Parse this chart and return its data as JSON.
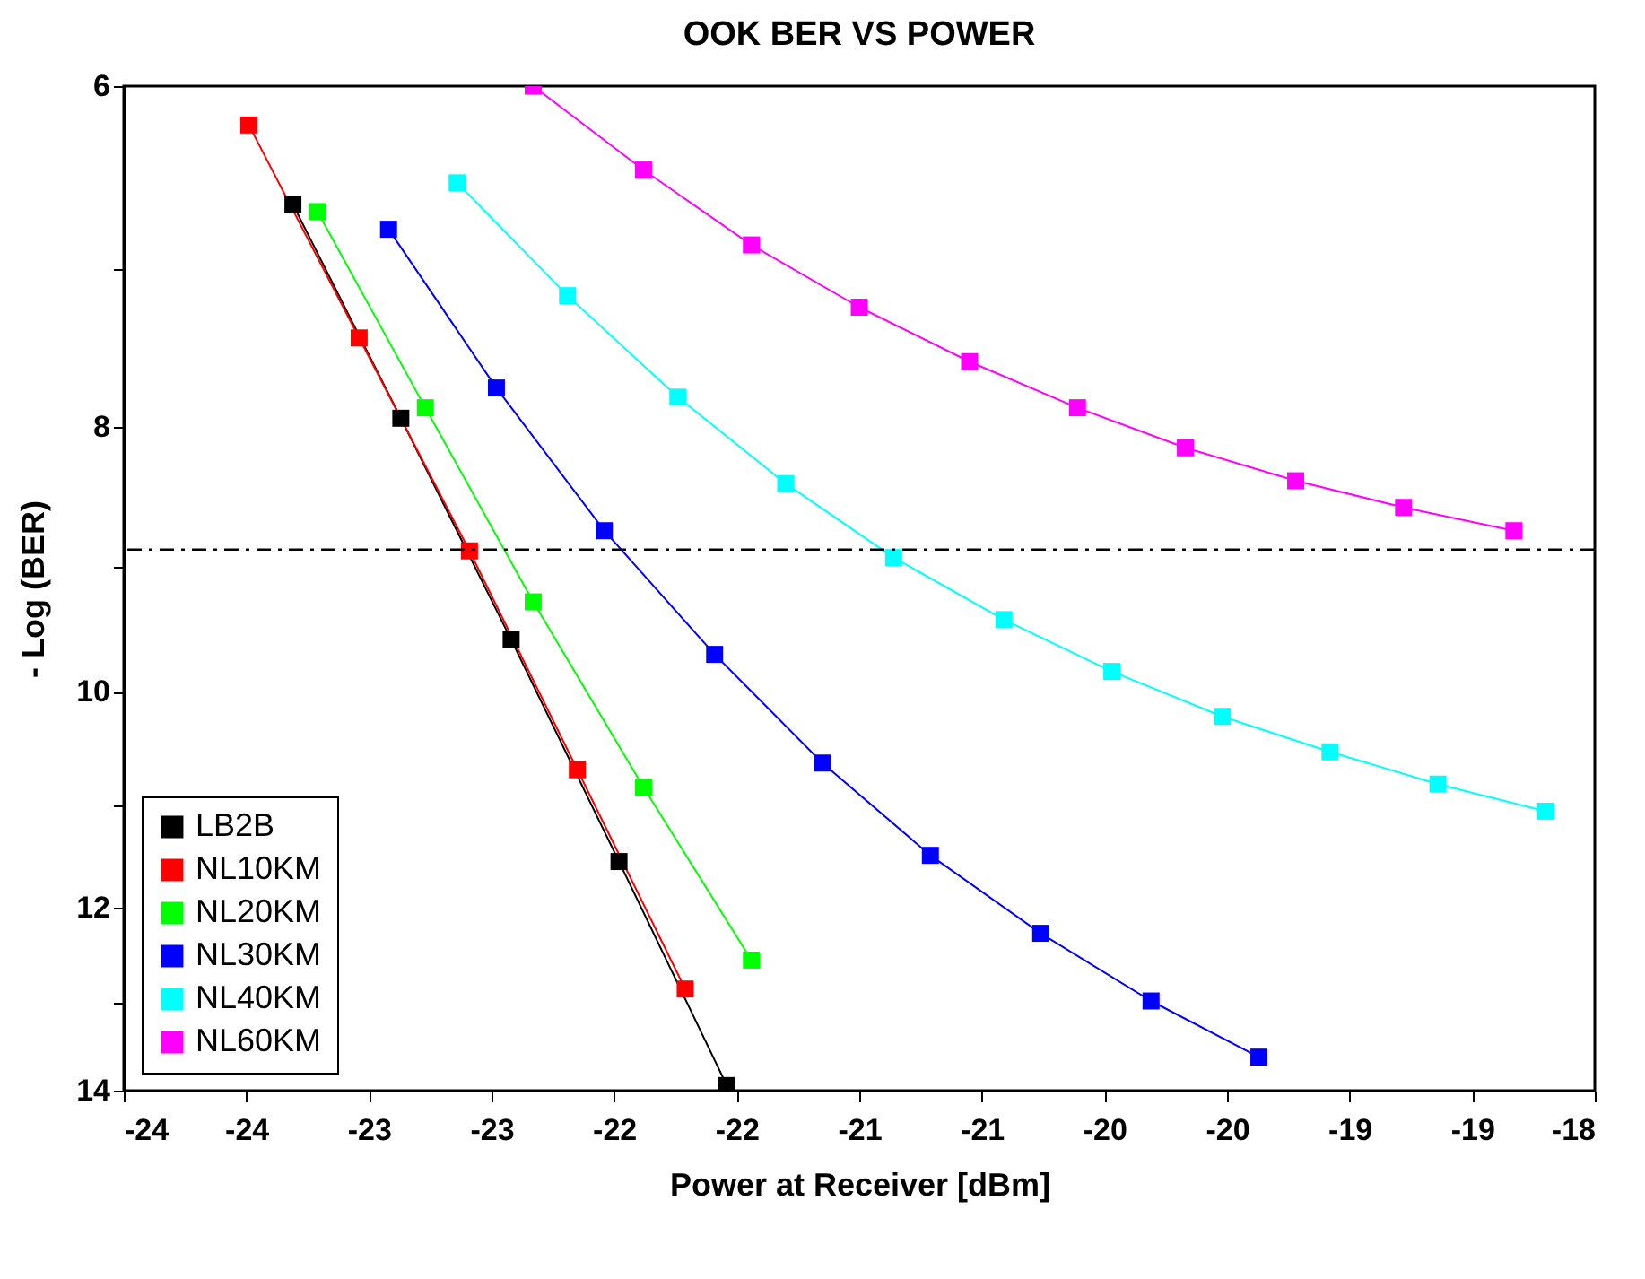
{
  "chart_data": {
    "type": "line",
    "title": "OOK BER VS POWER",
    "xlabel": "Power at Receiver [dBm]",
    "ylabel": "- Log (BER)",
    "xlim": [
      -24,
      -18
    ],
    "xticks": [
      -24,
      {
        "value": -23.5,
        "label": "-24"
      },
      -23,
      {
        "value": -22.5,
        "label": "-23"
      },
      -22,
      {
        "value": -21.5,
        "label": "-22"
      },
      -21,
      {
        "value": -20.5,
        "label": "-21"
      },
      -20,
      {
        "value": -19.5,
        "label": "-20"
      },
      -19,
      {
        "value": -18.5,
        "label": "-19"
      },
      -18
    ],
    "ylim": [
      14,
      6
    ],
    "yticks": [
      6,
      {
        "value": 7,
        "label": null
      },
      8,
      {
        "value": 9,
        "label": null
      },
      10,
      {
        "value": 11,
        "label": null
      },
      12,
      {
        "value": 13,
        "label": null
      },
      14
    ],
    "log": "y",
    "grid": false,
    "legend": "bottom left",
    "marker": "square",
    "line_style": "solid",
    "ref_lines": [
      {
        "axis": "y",
        "value": 8.87,
        "line_style": "dashed",
        "color": "#000000"
      }
    ],
    "series": [
      {
        "name": "LB2B",
        "color": "#000000",
        "x": [
          -23.31,
          -22.87,
          -22.42,
          -21.98,
          -21.54
        ],
        "values": [
          6.63,
          7.94,
          9.57,
          11.54,
          13.94
        ]
      },
      {
        "name": "NL10KM",
        "color": "#ff0000",
        "x": [
          -23.49,
          -23.04,
          -22.59,
          -22.15,
          -21.71
        ],
        "values": [
          6.2,
          7.42,
          8.88,
          10.68,
          12.85
        ]
      },
      {
        "name": "NL20KM",
        "color": "#00ff00",
        "x": [
          -23.21,
          -22.77,
          -22.33,
          -21.88,
          -21.44
        ],
        "values": [
          6.67,
          7.87,
          9.27,
          10.84,
          12.54
        ]
      },
      {
        "name": "NL30KM",
        "color": "#0000ff",
        "x": [
          -22.92,
          -22.48,
          -22.04,
          -21.59,
          -21.15,
          -20.71,
          -20.26,
          -19.81,
          -19.37
        ],
        "values": [
          6.77,
          7.74,
          8.73,
          9.69,
          10.62,
          11.48,
          12.26,
          12.98,
          13.61
        ]
      },
      {
        "name": "NL40KM",
        "color": "#00ffff",
        "x": [
          -22.64,
          -22.19,
          -21.74,
          -21.3,
          -20.86,
          -20.41,
          -19.97,
          -19.52,
          -19.08,
          -18.64,
          -18.2
        ],
        "values": [
          6.51,
          7.16,
          7.8,
          8.39,
          8.93,
          9.41,
          9.83,
          10.21,
          10.52,
          10.81,
          11.06
        ]
      },
      {
        "name": "NL60KM",
        "color": "#ff00ff",
        "x": [
          -22.33,
          -21.88,
          -21.44,
          -21.0,
          -20.55,
          -20.11,
          -19.67,
          -19.22,
          -18.78,
          -18.33
        ],
        "values": [
          6.0,
          6.44,
          6.86,
          7.23,
          7.57,
          7.87,
          8.14,
          8.37,
          8.56,
          8.73
        ]
      }
    ]
  }
}
